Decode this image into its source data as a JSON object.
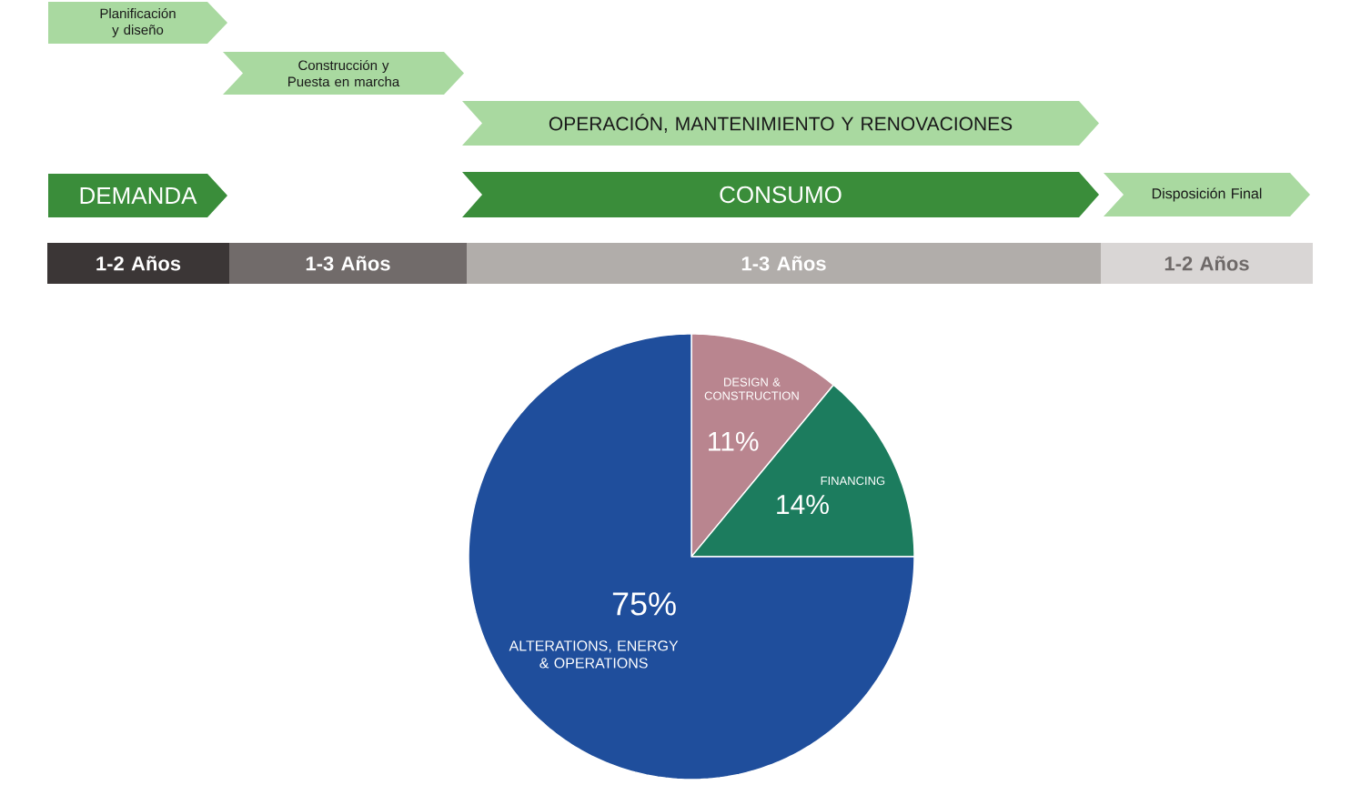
{
  "chart_data": [
    {
      "type": "other",
      "annotations": [
        "Planificación y diseño",
        "Construcción y Puesta en marcha",
        "OPERACIÓN, MANTENIMIENTO Y RENOVACIONES",
        "DEMANDA",
        "CONSUMO",
        "Disposición Final",
        "1-2 Años",
        "1-3 Años",
        "1-3 Años",
        "1-2 Años"
      ]
    },
    {
      "type": "pie",
      "categories": [
        "DESIGN & CONSTRUCTION",
        "FINANCING",
        "ALTERATIONS, ENERGY & OPERATIONS"
      ],
      "values": [
        11,
        14,
        75
      ],
      "colors": [
        "#b9858f",
        "#1c7c5e",
        "#1f4e9c"
      ],
      "value_labels": [
        "11%",
        "14%",
        "75%"
      ]
    }
  ]
}
